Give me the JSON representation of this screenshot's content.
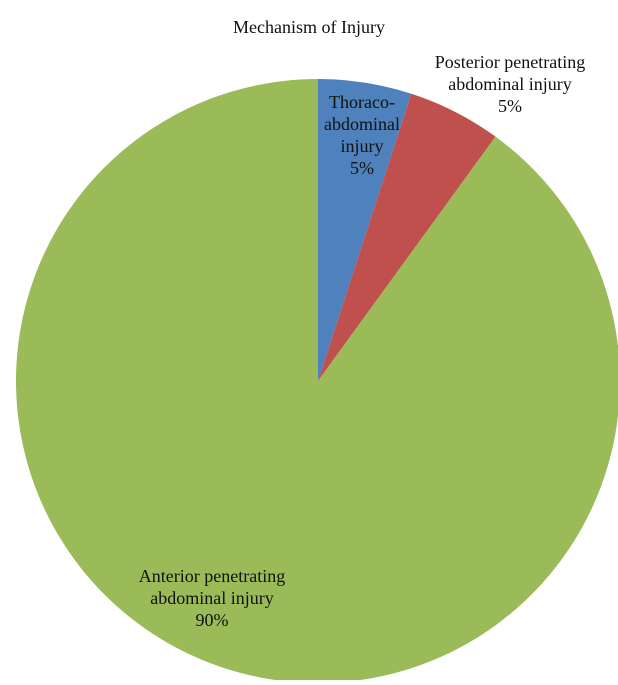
{
  "chart_data": {
    "type": "pie",
    "title": "Mechanism of Injury",
    "start_angle": "12 o'clock",
    "direction": "clockwise",
    "legend": "none",
    "slices": [
      {
        "label_lines": [
          "Thoraco-",
          "abdominal",
          "injury"
        ],
        "value": 5,
        "display": "5%",
        "color": "#4F81BD"
      },
      {
        "label_lines": [
          "Posterior penetrating",
          "abdominal injury"
        ],
        "value": 5,
        "display": "5%",
        "color": "#C0504D"
      },
      {
        "label_lines": [
          "Anterior penetrating",
          "abdominal injury"
        ],
        "value": 90,
        "display": "90%",
        "color": "#9BBB59"
      }
    ]
  }
}
